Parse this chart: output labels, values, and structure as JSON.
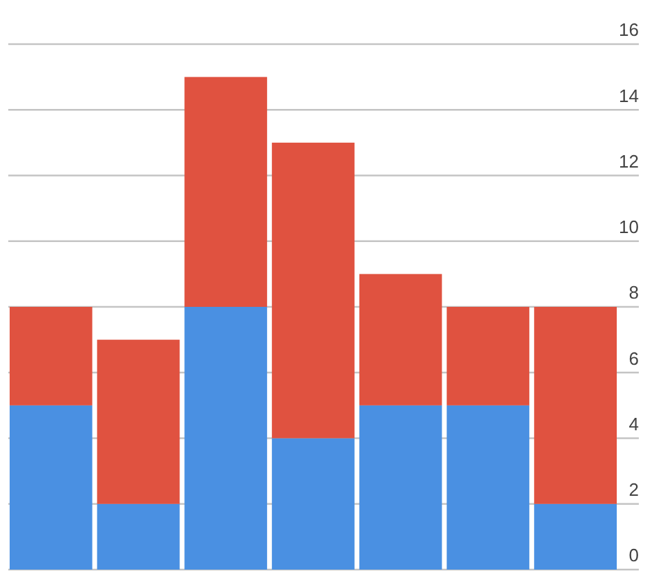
{
  "chart_data": {
    "type": "bar",
    "stacked": true,
    "categories": [
      null,
      null,
      null,
      null,
      null,
      null,
      null
    ],
    "series": [
      {
        "color": "#4a90e2",
        "values": [
          5,
          2,
          8,
          4,
          5,
          5,
          2
        ]
      },
      {
        "color": "#e05240",
        "values": [
          3,
          5,
          7,
          9,
          4,
          3,
          6
        ]
      }
    ],
    "ylim": [
      0,
      16
    ],
    "yticks": [
      0,
      2,
      4,
      6,
      8,
      10,
      12,
      14,
      16
    ],
    "grid": "y",
    "tick_labels": "y"
  }
}
